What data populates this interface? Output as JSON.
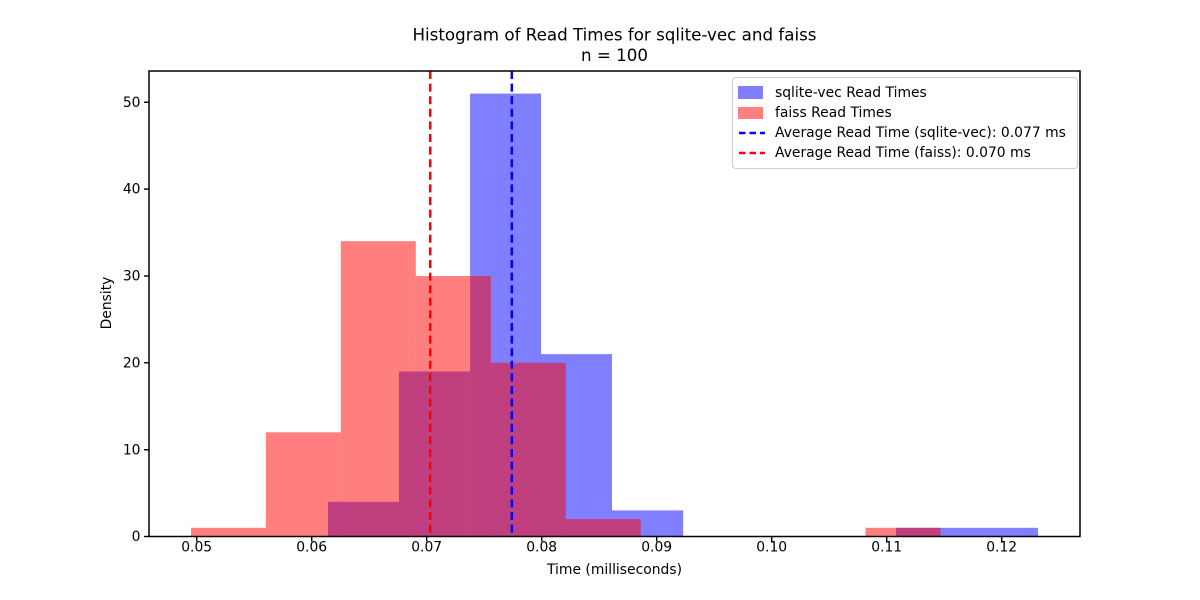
{
  "chart_data": {
    "type": "bar",
    "subtype": "histogram",
    "title": "Histogram of Read Times for sqlite-vec and faiss",
    "subtitle": "n = 100",
    "n": 100,
    "xlabel": "Time (milliseconds)",
    "ylabel": "Density",
    "xlim": [
      0.04585,
      0.12681
    ],
    "ylim": [
      0,
      53.6
    ],
    "x_ticks": [
      0.05,
      0.06,
      0.07,
      0.08,
      0.09,
      0.1,
      0.11,
      0.12
    ],
    "x_tick_labels": [
      "0.05",
      "0.06",
      "0.07",
      "0.08",
      "0.09",
      "0.10",
      "0.11",
      "0.12"
    ],
    "y_ticks": [
      0,
      10,
      20,
      30,
      40,
      50
    ],
    "y_tick_labels": [
      "0",
      "10",
      "20",
      "30",
      "40",
      "50"
    ],
    "grid": false,
    "axis_color": "#000000",
    "background": "#ffffff",
    "series": [
      {
        "id": "sqlite-vec",
        "name": "sqlite-vec Read Times",
        "color": "#0000ff",
        "alpha": 0.5,
        "bin_edges": [
          0.06142,
          0.06759,
          0.07377,
          0.07994,
          0.08611,
          0.09229,
          0.09846,
          0.10464,
          0.11081,
          0.11698,
          0.12316
        ],
        "counts": [
          4,
          19,
          51,
          21,
          3,
          0,
          0,
          0,
          1,
          1
        ]
      },
      {
        "id": "faiss",
        "name": "faiss Read Times",
        "color": "#ff0000",
        "alpha": 0.5,
        "bin_edges": [
          0.0495,
          0.05602,
          0.06253,
          0.06905,
          0.07557,
          0.08209,
          0.08861,
          0.09513,
          0.10164,
          0.10816,
          0.11468
        ],
        "counts": [
          1,
          12,
          34,
          30,
          20,
          2,
          0,
          0,
          0,
          1
        ]
      }
    ],
    "avg_lines": [
      {
        "id": "sqlite-vec",
        "x": 0.0774,
        "value_label": "0.077 ms",
        "color": "#0000ff",
        "style": "dashed",
        "label": "Average Read Time (sqlite-vec): 0.077 ms"
      },
      {
        "id": "faiss",
        "x": 0.0703,
        "value_label": "0.070 ms",
        "color": "#ff0000",
        "style": "dashed",
        "label": "Average Read Time (faiss): 0.070 ms"
      }
    ],
    "legend": {
      "position": "upper right",
      "border_color": "#cccccc",
      "items": [
        {
          "swatch": "patch",
          "color": "#7f7fff",
          "label": "sqlite-vec Read Times"
        },
        {
          "swatch": "patch",
          "color": "#ff7f7f",
          "label": "faiss Read Times"
        },
        {
          "swatch": "dashed-line",
          "color": "#0000ff",
          "label": "Average Read Time (sqlite-vec): 0.077 ms"
        },
        {
          "swatch": "dashed-line",
          "color": "#ff0000",
          "label": "Average Read Time (faiss): 0.070 ms"
        }
      ]
    }
  }
}
